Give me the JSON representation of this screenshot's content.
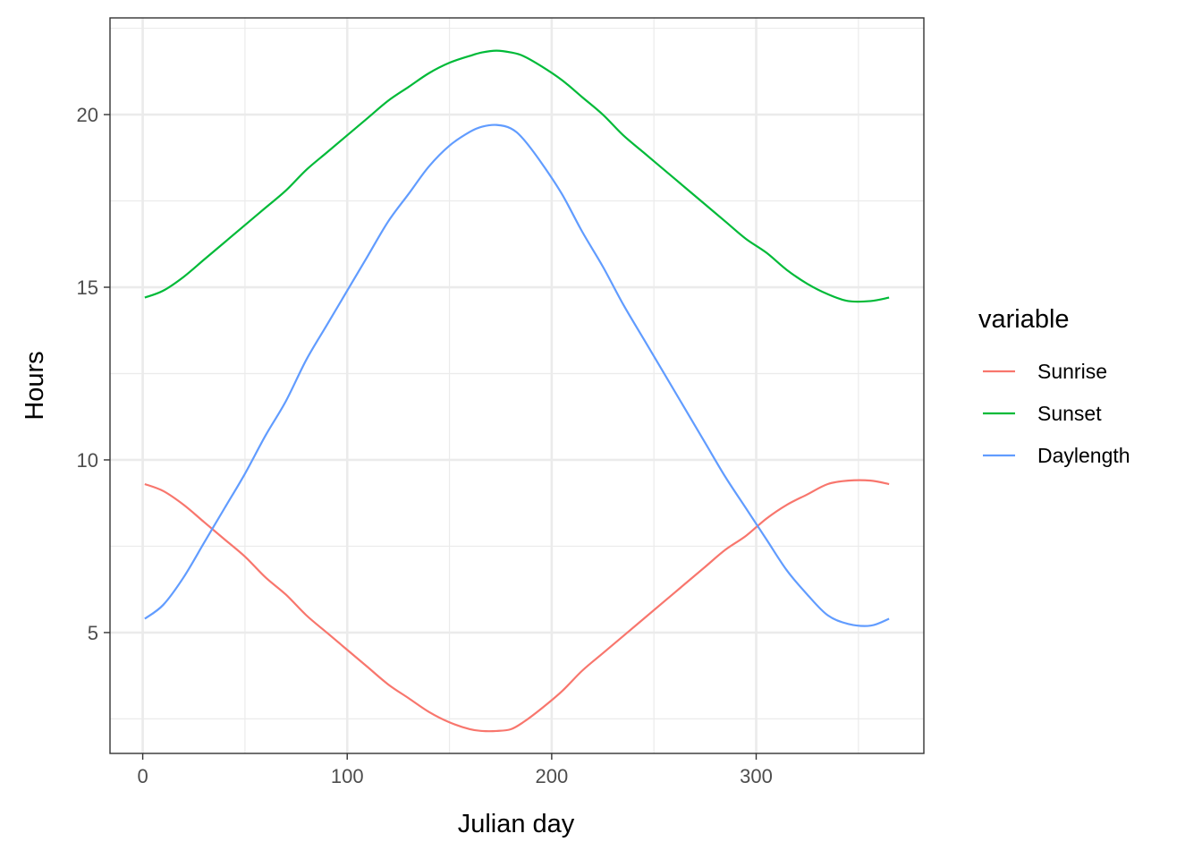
{
  "chart_data": {
    "type": "line",
    "xlabel": "Julian day",
    "ylabel": "Hours",
    "xlim": [
      -16,
      382
    ],
    "ylim": [
      1.5,
      22.8
    ],
    "x_ticks": [
      0,
      100,
      200,
      300
    ],
    "x_minor_ticks": [
      50,
      150,
      250,
      350
    ],
    "y_ticks": [
      5,
      10,
      15,
      20
    ],
    "y_minor_ticks": [
      2.5,
      7.5,
      12.5,
      17.5,
      22.5
    ],
    "grid": true,
    "legend": {
      "title": "variable",
      "placement": "right"
    },
    "x": [
      1,
      10,
      20,
      30,
      40,
      50,
      60,
      70,
      80,
      90,
      100,
      110,
      120,
      130,
      140,
      150,
      160,
      166,
      173,
      180,
      186,
      195,
      205,
      215,
      225,
      235,
      245,
      255,
      265,
      275,
      285,
      295,
      305,
      315,
      325,
      335,
      345,
      356,
      365
    ],
    "series": [
      {
        "name": "Sunrise",
        "color": "#F8766D",
        "values": [
          9.3,
          9.1,
          8.7,
          8.2,
          7.7,
          7.2,
          6.6,
          6.1,
          5.5,
          5.0,
          4.5,
          4.0,
          3.5,
          3.1,
          2.7,
          2.4,
          2.2,
          2.15,
          2.15,
          2.2,
          2.4,
          2.8,
          3.3,
          3.9,
          4.4,
          4.9,
          5.4,
          5.9,
          6.4,
          6.9,
          7.4,
          7.8,
          8.3,
          8.7,
          9.0,
          9.3,
          9.4,
          9.4,
          9.3
        ]
      },
      {
        "name": "Sunset",
        "color": "#00BA38",
        "values": [
          14.7,
          14.9,
          15.3,
          15.8,
          16.3,
          16.8,
          17.3,
          17.8,
          18.4,
          18.9,
          19.4,
          19.9,
          20.4,
          20.8,
          21.2,
          21.5,
          21.7,
          21.8,
          21.85,
          21.8,
          21.7,
          21.4,
          21.0,
          20.5,
          20.0,
          19.4,
          18.9,
          18.4,
          17.9,
          17.4,
          16.9,
          16.4,
          16.0,
          15.5,
          15.1,
          14.8,
          14.6,
          14.6,
          14.7
        ]
      },
      {
        "name": "Daylength",
        "color": "#619CFF",
        "values": [
          5.4,
          5.8,
          6.6,
          7.6,
          8.6,
          9.6,
          10.7,
          11.7,
          12.9,
          13.9,
          14.9,
          15.9,
          16.9,
          17.7,
          18.5,
          19.1,
          19.5,
          19.65,
          19.7,
          19.6,
          19.3,
          18.6,
          17.7,
          16.6,
          15.6,
          14.5,
          13.5,
          12.5,
          11.5,
          10.5,
          9.5,
          8.6,
          7.7,
          6.8,
          6.1,
          5.5,
          5.25,
          5.2,
          5.4
        ]
      }
    ]
  }
}
